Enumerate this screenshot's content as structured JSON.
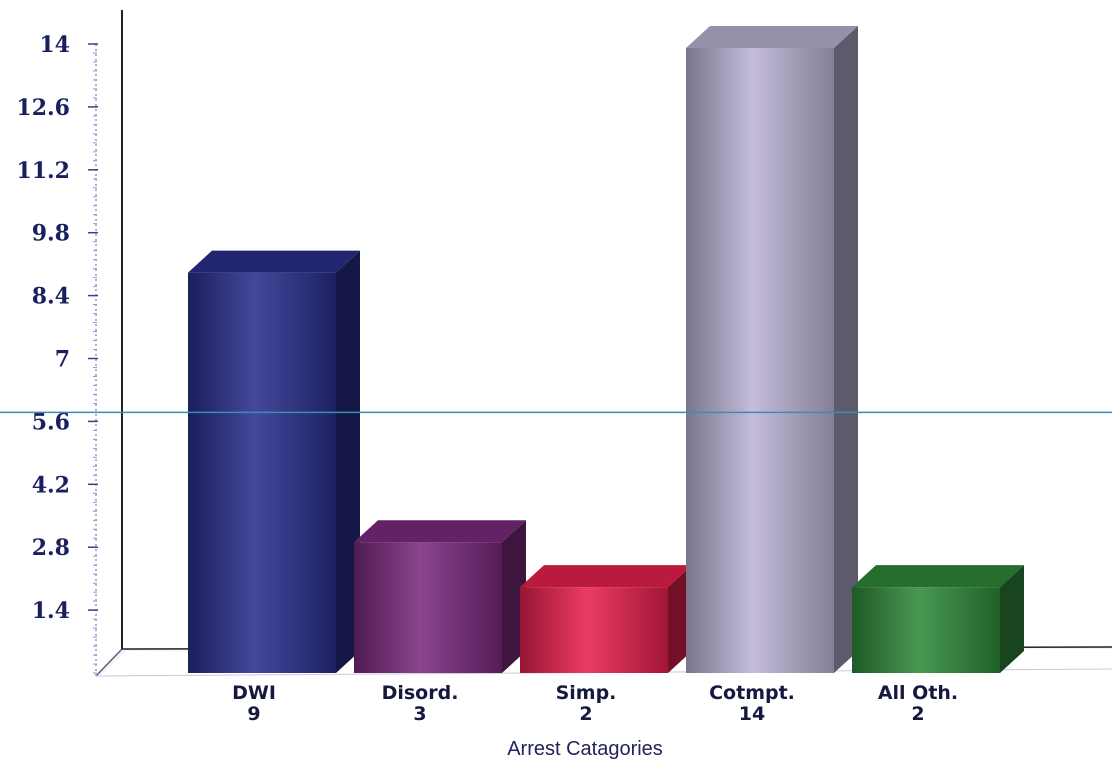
{
  "chart_data": {
    "type": "bar",
    "style": "3d",
    "title": "",
    "xlabel": "Arrest Catagories",
    "ylabel": "",
    "ylim": [
      0,
      14
    ],
    "yticks": [
      "1.4",
      "2.8",
      "4.2",
      "5.6",
      "7",
      "8.4",
      "9.8",
      "11.2",
      "12.6",
      "14"
    ],
    "categories": [
      "DWI",
      "Disord.",
      "Simp.",
      "Cotmpt.",
      "All Oth."
    ],
    "values": [
      9,
      3,
      2,
      14,
      2
    ],
    "value_labels": [
      "9",
      "3",
      "2",
      "14",
      "2"
    ],
    "colors": [
      "#2a2f8c",
      "#7a2a7e",
      "#e8204e",
      "#bcb4d6",
      "#2f8a3a"
    ],
    "reference_line": {
      "y": 5.8,
      "color": "#3a8fb0"
    },
    "grid": false,
    "legend": "none"
  }
}
